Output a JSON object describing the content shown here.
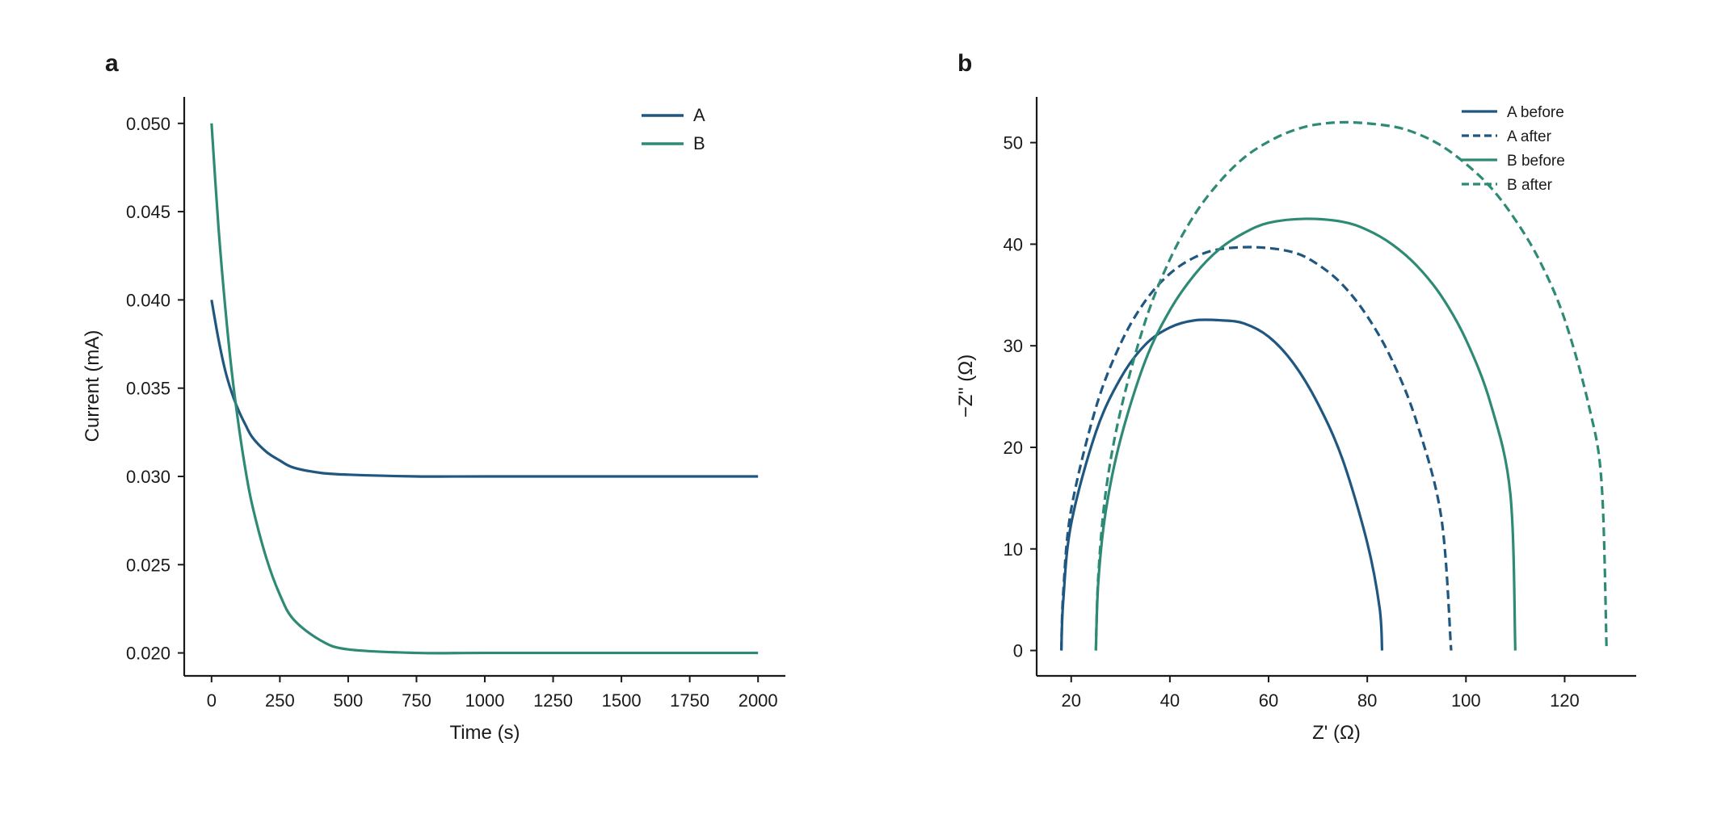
{
  "colors": {
    "A": "#1f5780",
    "B": "#2e8a75"
  },
  "chart_data": [
    {
      "panel": "a",
      "type": "line",
      "xlabel": "Time (s)",
      "ylabel": "Current (mA)",
      "xlim": [
        -100,
        2100
      ],
      "ylim": [
        0.0187,
        0.0515
      ],
      "xticks": [
        0,
        250,
        500,
        750,
        1000,
        1250,
        1500,
        1750,
        2000
      ],
      "xtick_labels": [
        "0",
        "250",
        "500",
        "750",
        "1000",
        "1250",
        "1500",
        "1750",
        "2000"
      ],
      "yticks": [
        0.02,
        0.025,
        0.03,
        0.035,
        0.04,
        0.045,
        0.05
      ],
      "ytick_labels": [
        "0.020",
        "0.025",
        "0.030",
        "0.035",
        "0.040",
        "0.045",
        "0.050"
      ],
      "legend": "top-right",
      "grid": false,
      "series": [
        {
          "name": "A",
          "color": "#1f5780",
          "dash": false,
          "x": [
            0,
            25,
            50,
            75,
            100,
            125,
            150,
            200,
            250,
            300,
            400,
            500,
            750,
            1000,
            1500,
            2000
          ],
          "y": [
            0.04,
            0.0378,
            0.036,
            0.0347,
            0.0337,
            0.0329,
            0.0322,
            0.0314,
            0.0309,
            0.0305,
            0.0302,
            0.0301,
            0.03,
            0.03,
            0.03,
            0.03
          ]
        },
        {
          "name": "B",
          "color": "#2e8a75",
          "dash": false,
          "x": [
            0,
            25,
            50,
            75,
            100,
            125,
            150,
            200,
            250,
            300,
            400,
            500,
            750,
            1000,
            1500,
            2000
          ],
          "y": [
            0.05,
            0.0442,
            0.0396,
            0.0358,
            0.0328,
            0.0303,
            0.0283,
            0.0254,
            0.0233,
            0.0219,
            0.0207,
            0.0202,
            0.02,
            0.02,
            0.02,
            0.02
          ]
        }
      ]
    },
    {
      "panel": "b",
      "type": "line",
      "xlabel": "Z' (Ω)",
      "ylabel": "−Z'' (Ω)",
      "xlim": [
        13,
        134.5
      ],
      "ylim": [
        -2.5,
        54.5
      ],
      "xticks": [
        20,
        40,
        60,
        80,
        100,
        120
      ],
      "xtick_labels": [
        "20",
        "40",
        "60",
        "80",
        "100",
        "120"
      ],
      "yticks": [
        0,
        10,
        20,
        30,
        40,
        50
      ],
      "ytick_labels": [
        "0",
        "10",
        "20",
        "30",
        "40",
        "50"
      ],
      "legend": "top-right",
      "grid": false,
      "series": [
        {
          "name": "A before",
          "color": "#1f5780",
          "dash": false,
          "x": [
            18,
            18.4,
            20,
            25,
            30,
            35,
            40,
            45,
            50.5,
            55,
            60,
            65,
            70,
            75,
            80,
            82.5,
            83
          ],
          "y": [
            0,
            5,
            12.5,
            21.5,
            26.8,
            30.1,
            31.8,
            32.5,
            32.5,
            32.2,
            30.9,
            28.3,
            24.3,
            18.8,
            10.6,
            4.2,
            0
          ]
        },
        {
          "name": "A after",
          "color": "#1f5780",
          "dash": true,
          "x": [
            18,
            18.4,
            20,
            25,
            30,
            35,
            40,
            45,
            50,
            57.5,
            65,
            70,
            75,
            80,
            85,
            90,
            95,
            97
          ],
          "y": [
            0,
            5.8,
            13.9,
            23.9,
            30.2,
            34.4,
            37.1,
            38.7,
            39.5,
            39.7,
            39.2,
            38,
            36,
            32.9,
            28.6,
            22.5,
            13.1,
            0
          ]
        },
        {
          "name": "B before",
          "color": "#2e8a75",
          "dash": false,
          "x": [
            25,
            25.5,
            27,
            30,
            35,
            40,
            45,
            50,
            55,
            60,
            67.5,
            75,
            80,
            85,
            90,
            95,
            100,
            105,
            109,
            110
          ],
          "y": [
            0,
            6.8,
            13.7,
            20.8,
            28.5,
            33.5,
            37,
            39.5,
            41.1,
            42.1,
            42.5,
            42.2,
            41.4,
            40,
            37.9,
            34.9,
            30.6,
            24.3,
            15.4,
            0
          ]
        },
        {
          "name": "B after",
          "color": "#2e8a75",
          "dash": true,
          "x": [
            25,
            25.5,
            27,
            30,
            35,
            40,
            45,
            50,
            55,
            60,
            65,
            70,
            76.5,
            85,
            90,
            95,
            100,
            105,
            110,
            115,
            120,
            125,
            127.5,
            128.5
          ],
          "y": [
            0,
            7.4,
            15.6,
            23.6,
            32.4,
            38.5,
            42.9,
            46.1,
            48.5,
            50.1,
            51.2,
            51.8,
            52,
            51.6,
            50.9,
            49.7,
            47.9,
            45.6,
            42.4,
            38.3,
            32.6,
            23.9,
            16.4,
            0
          ]
        }
      ]
    }
  ]
}
